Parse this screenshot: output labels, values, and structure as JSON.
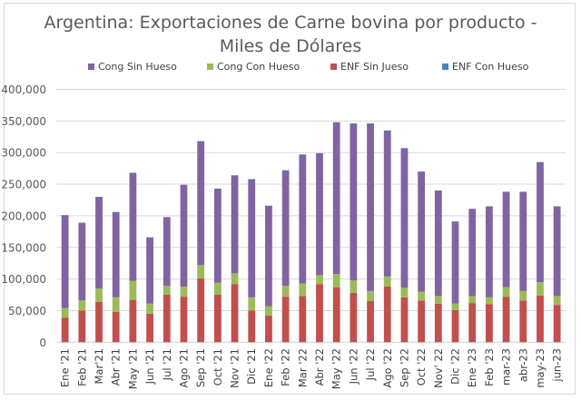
{
  "chart_data": {
    "type": "bar",
    "stacked": true,
    "title_lines": [
      "Argentina: Exportaciones de Carne bovina por producto -",
      "Miles de Dólares"
    ],
    "xlabel": "",
    "ylabel": "",
    "ylim": [
      0,
      400000
    ],
    "yticks": [
      0,
      50000,
      100000,
      150000,
      200000,
      250000,
      300000,
      350000,
      400000
    ],
    "ytick_labels": [
      "0",
      "50,000",
      "100,000",
      "150,000",
      "200,000",
      "250,000",
      "300,000",
      "350,000",
      "400,000"
    ],
    "grid": "horizontal",
    "legend_position": "top",
    "categories": [
      "Ene '21",
      "Feb '21",
      "Mar'21",
      "Abr '21",
      "May '21",
      "Jun '21",
      "Jul '21",
      "Ago '21",
      "Sep '21",
      "Oct '21",
      "Nov '21",
      "Dic '21",
      "Ene '22",
      "Feb '22",
      "Mar '22",
      "Abr '22",
      "May '22",
      "Jun '22",
      "Jul '22",
      "Ago '22",
      "Sep '22",
      "Oct '22",
      "Nov' 22",
      "Dic '22",
      "Ene '23",
      "Feb '23",
      "mar-23",
      "abr-23",
      "may-23",
      "jun-23"
    ],
    "series": [
      {
        "name": "ENF Con Hueso",
        "color": "#4F81BD",
        "values": [
          0,
          0,
          0,
          0,
          0,
          0,
          0,
          0,
          0,
          0,
          0,
          0,
          0,
          0,
          0,
          0,
          0,
          0,
          0,
          0,
          0,
          0,
          0,
          0,
          0,
          0,
          0,
          0,
          0,
          0
        ]
      },
      {
        "name": "ENF Sin Jueso",
        "color": "#C0504D",
        "values": [
          39000,
          50000,
          64000,
          48000,
          67000,
          45000,
          75000,
          72000,
          101000,
          75000,
          92000,
          50000,
          42000,
          72000,
          73000,
          92000,
          87000,
          78000,
          65000,
          88000,
          71000,
          66000,
          61000,
          51000,
          62000,
          60000,
          72000,
          66000,
          74000,
          59000
        ]
      },
      {
        "name": "Cong Con Hueso",
        "color": "#9BBB59",
        "values": [
          15000,
          16000,
          21000,
          23000,
          30000,
          16000,
          14000,
          16000,
          21000,
          19000,
          17000,
          21000,
          15000,
          17000,
          20000,
          14000,
          21000,
          20000,
          16000,
          16000,
          15000,
          14000,
          12000,
          10000,
          11000,
          11000,
          15000,
          15000,
          21000,
          14000
        ]
      },
      {
        "name": "Cong Sin Hueso",
        "color": "#8064A2",
        "values": [
          147000,
          123000,
          145000,
          135000,
          171000,
          105000,
          109000,
          161000,
          196000,
          149000,
          155000,
          187000,
          159000,
          183000,
          204000,
          193000,
          240000,
          248000,
          265000,
          231000,
          221000,
          190000,
          167000,
          130000,
          138000,
          144000,
          151000,
          157000,
          190000,
          142000
        ]
      }
    ],
    "legend_order": [
      "Cong Sin Hueso",
      "Cong Con Hueso",
      "ENF Sin Jueso",
      "ENF Con Hueso"
    ]
  }
}
